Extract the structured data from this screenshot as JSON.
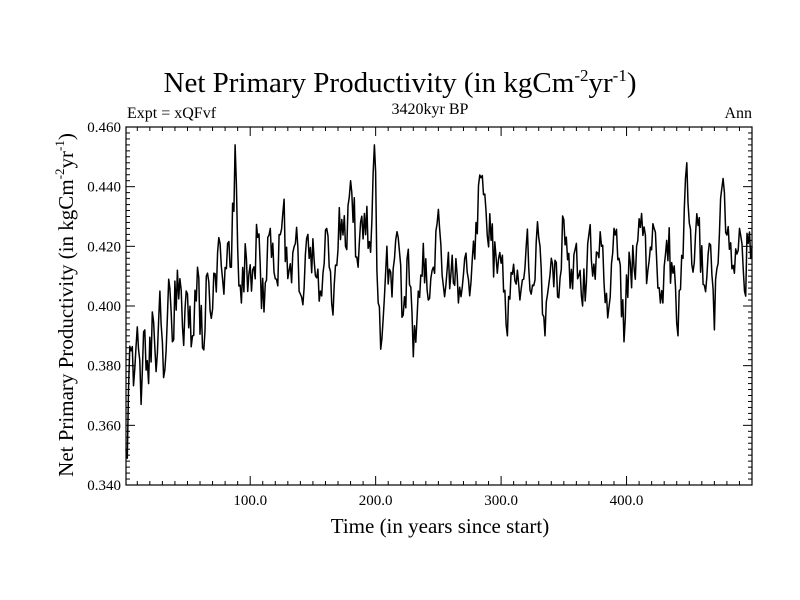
{
  "chart_data": {
    "type": "line",
    "title": "Net Primary Productivity (in kgCm",
    "title_sup1": "-2",
    "title_mid": "yr",
    "title_sup2": "-1",
    "title_end": ")",
    "subtitle_left": "Expt = xQFvf",
    "subtitle_center": "3420kyr BP",
    "subtitle_right": "Ann",
    "xlabel": "Time (in years since start)",
    "ylabel": "Net Primary Productivity (in kgCm",
    "ylabel_sup1": "-2",
    "ylabel_mid": "yr",
    "ylabel_sup2": "-1",
    "ylabel_end": ")",
    "xlim": [
      1,
      500
    ],
    "ylim": [
      0.34,
      0.46
    ],
    "x_ticks": [
      100,
      200,
      300,
      400
    ],
    "x_tick_labels": [
      "100.0",
      "200.0",
      "300.0",
      "400.0"
    ],
    "y_ticks": [
      0.34,
      0.36,
      0.38,
      0.4,
      0.42,
      0.44,
      0.46
    ],
    "y_tick_labels": [
      "0.340",
      "0.360",
      "0.380",
      "0.400",
      "0.420",
      "0.440",
      "0.460"
    ],
    "line_color": "#000000",
    "series": [
      {
        "name": "Net Primary Productivity",
        "anchors": [
          [
            1,
            0.352
          ],
          [
            2,
            0.349
          ],
          [
            3,
            0.372
          ],
          [
            5,
            0.385
          ],
          [
            8,
            0.379
          ],
          [
            10,
            0.393
          ],
          [
            13,
            0.367
          ],
          [
            16,
            0.392
          ],
          [
            19,
            0.374
          ],
          [
            22,
            0.398
          ],
          [
            25,
            0.378
          ],
          [
            28,
            0.405
          ],
          [
            31,
            0.376
          ],
          [
            35,
            0.409
          ],
          [
            38,
            0.388
          ],
          [
            42,
            0.412
          ],
          [
            46,
            0.393
          ],
          [
            50,
            0.404
          ],
          [
            54,
            0.39
          ],
          [
            58,
            0.413
          ],
          [
            62,
            0.386
          ],
          [
            66,
            0.411
          ],
          [
            70,
            0.399
          ],
          [
            74,
            0.418
          ],
          [
            78,
            0.409
          ],
          [
            82,
            0.421
          ],
          [
            85,
            0.413
          ],
          [
            88,
            0.454
          ],
          [
            90,
            0.419
          ],
          [
            93,
            0.401
          ],
          [
            97,
            0.416
          ],
          [
            101,
            0.405
          ],
          [
            106,
            0.423
          ],
          [
            111,
            0.398
          ],
          [
            116,
            0.426
          ],
          [
            121,
            0.409
          ],
          [
            126,
            0.431
          ],
          [
            131,
            0.412
          ],
          [
            136,
            0.421
          ],
          [
            141,
            0.403
          ],
          [
            146,
            0.424
          ],
          [
            151,
            0.415
          ],
          [
            156,
            0.405
          ],
          [
            161,
            0.426
          ],
          [
            166,
            0.397
          ],
          [
            171,
            0.433
          ],
          [
            176,
            0.42
          ],
          [
            181,
            0.438
          ],
          [
            186,
            0.413
          ],
          [
            191,
            0.431
          ],
          [
            196,
            0.418
          ],
          [
            199,
            0.454
          ],
          [
            202,
            0.401
          ],
          [
            205,
            0.389
          ],
          [
            209,
            0.42
          ],
          [
            213,
            0.403
          ],
          [
            218,
            0.423
          ],
          [
            222,
            0.397
          ],
          [
            226,
            0.419
          ],
          [
            230,
            0.383
          ],
          [
            234,
            0.405
          ],
          [
            238,
            0.421
          ],
          [
            242,
            0.402
          ],
          [
            246,
            0.413
          ],
          [
            251,
            0.426
          ],
          [
            256,
            0.407
          ],
          [
            261,
            0.417
          ],
          [
            266,
            0.401
          ],
          [
            271,
            0.416
          ],
          [
            276,
            0.408
          ],
          [
            280,
            0.428
          ],
          [
            284,
            0.443
          ],
          [
            288,
            0.432
          ],
          [
            292,
            0.422
          ],
          [
            297,
            0.411
          ],
          [
            301,
            0.417
          ],
          [
            305,
            0.39
          ],
          [
            310,
            0.414
          ],
          [
            315,
            0.402
          ],
          [
            320,
            0.42
          ],
          [
            325,
            0.407
          ],
          [
            330,
            0.423
          ],
          [
            335,
            0.39
          ],
          [
            340,
            0.416
          ],
          [
            345,
            0.403
          ],
          [
            350,
            0.429
          ],
          [
            355,
            0.406
          ],
          [
            360,
            0.421
          ],
          [
            365,
            0.4
          ],
          [
            370,
            0.424
          ],
          [
            375,
            0.409
          ],
          [
            380,
            0.42
          ],
          [
            385,
            0.396
          ],
          [
            390,
            0.426
          ],
          [
            394,
            0.416
          ],
          [
            398,
            0.388
          ],
          [
            402,
            0.418
          ],
          [
            407,
            0.409
          ],
          [
            412,
            0.431
          ],
          [
            417,
            0.412
          ],
          [
            422,
            0.426
          ],
          [
            427,
            0.401
          ],
          [
            432,
            0.422
          ],
          [
            437,
            0.411
          ],
          [
            441,
            0.39
          ],
          [
            445,
            0.416
          ],
          [
            448,
            0.448
          ],
          [
            452,
            0.414
          ],
          [
            457,
            0.427
          ],
          [
            462,
            0.407
          ],
          [
            466,
            0.421
          ],
          [
            470,
            0.392
          ],
          [
            474,
            0.424
          ],
          [
            478,
            0.438
          ],
          [
            482,
            0.419
          ],
          [
            486,
            0.411
          ],
          [
            490,
            0.426
          ],
          [
            494,
            0.405
          ],
          [
            497,
            0.421
          ],
          [
            500,
            0.42
          ]
        ],
        "jitter_amplitude": 0.009
      }
    ]
  }
}
